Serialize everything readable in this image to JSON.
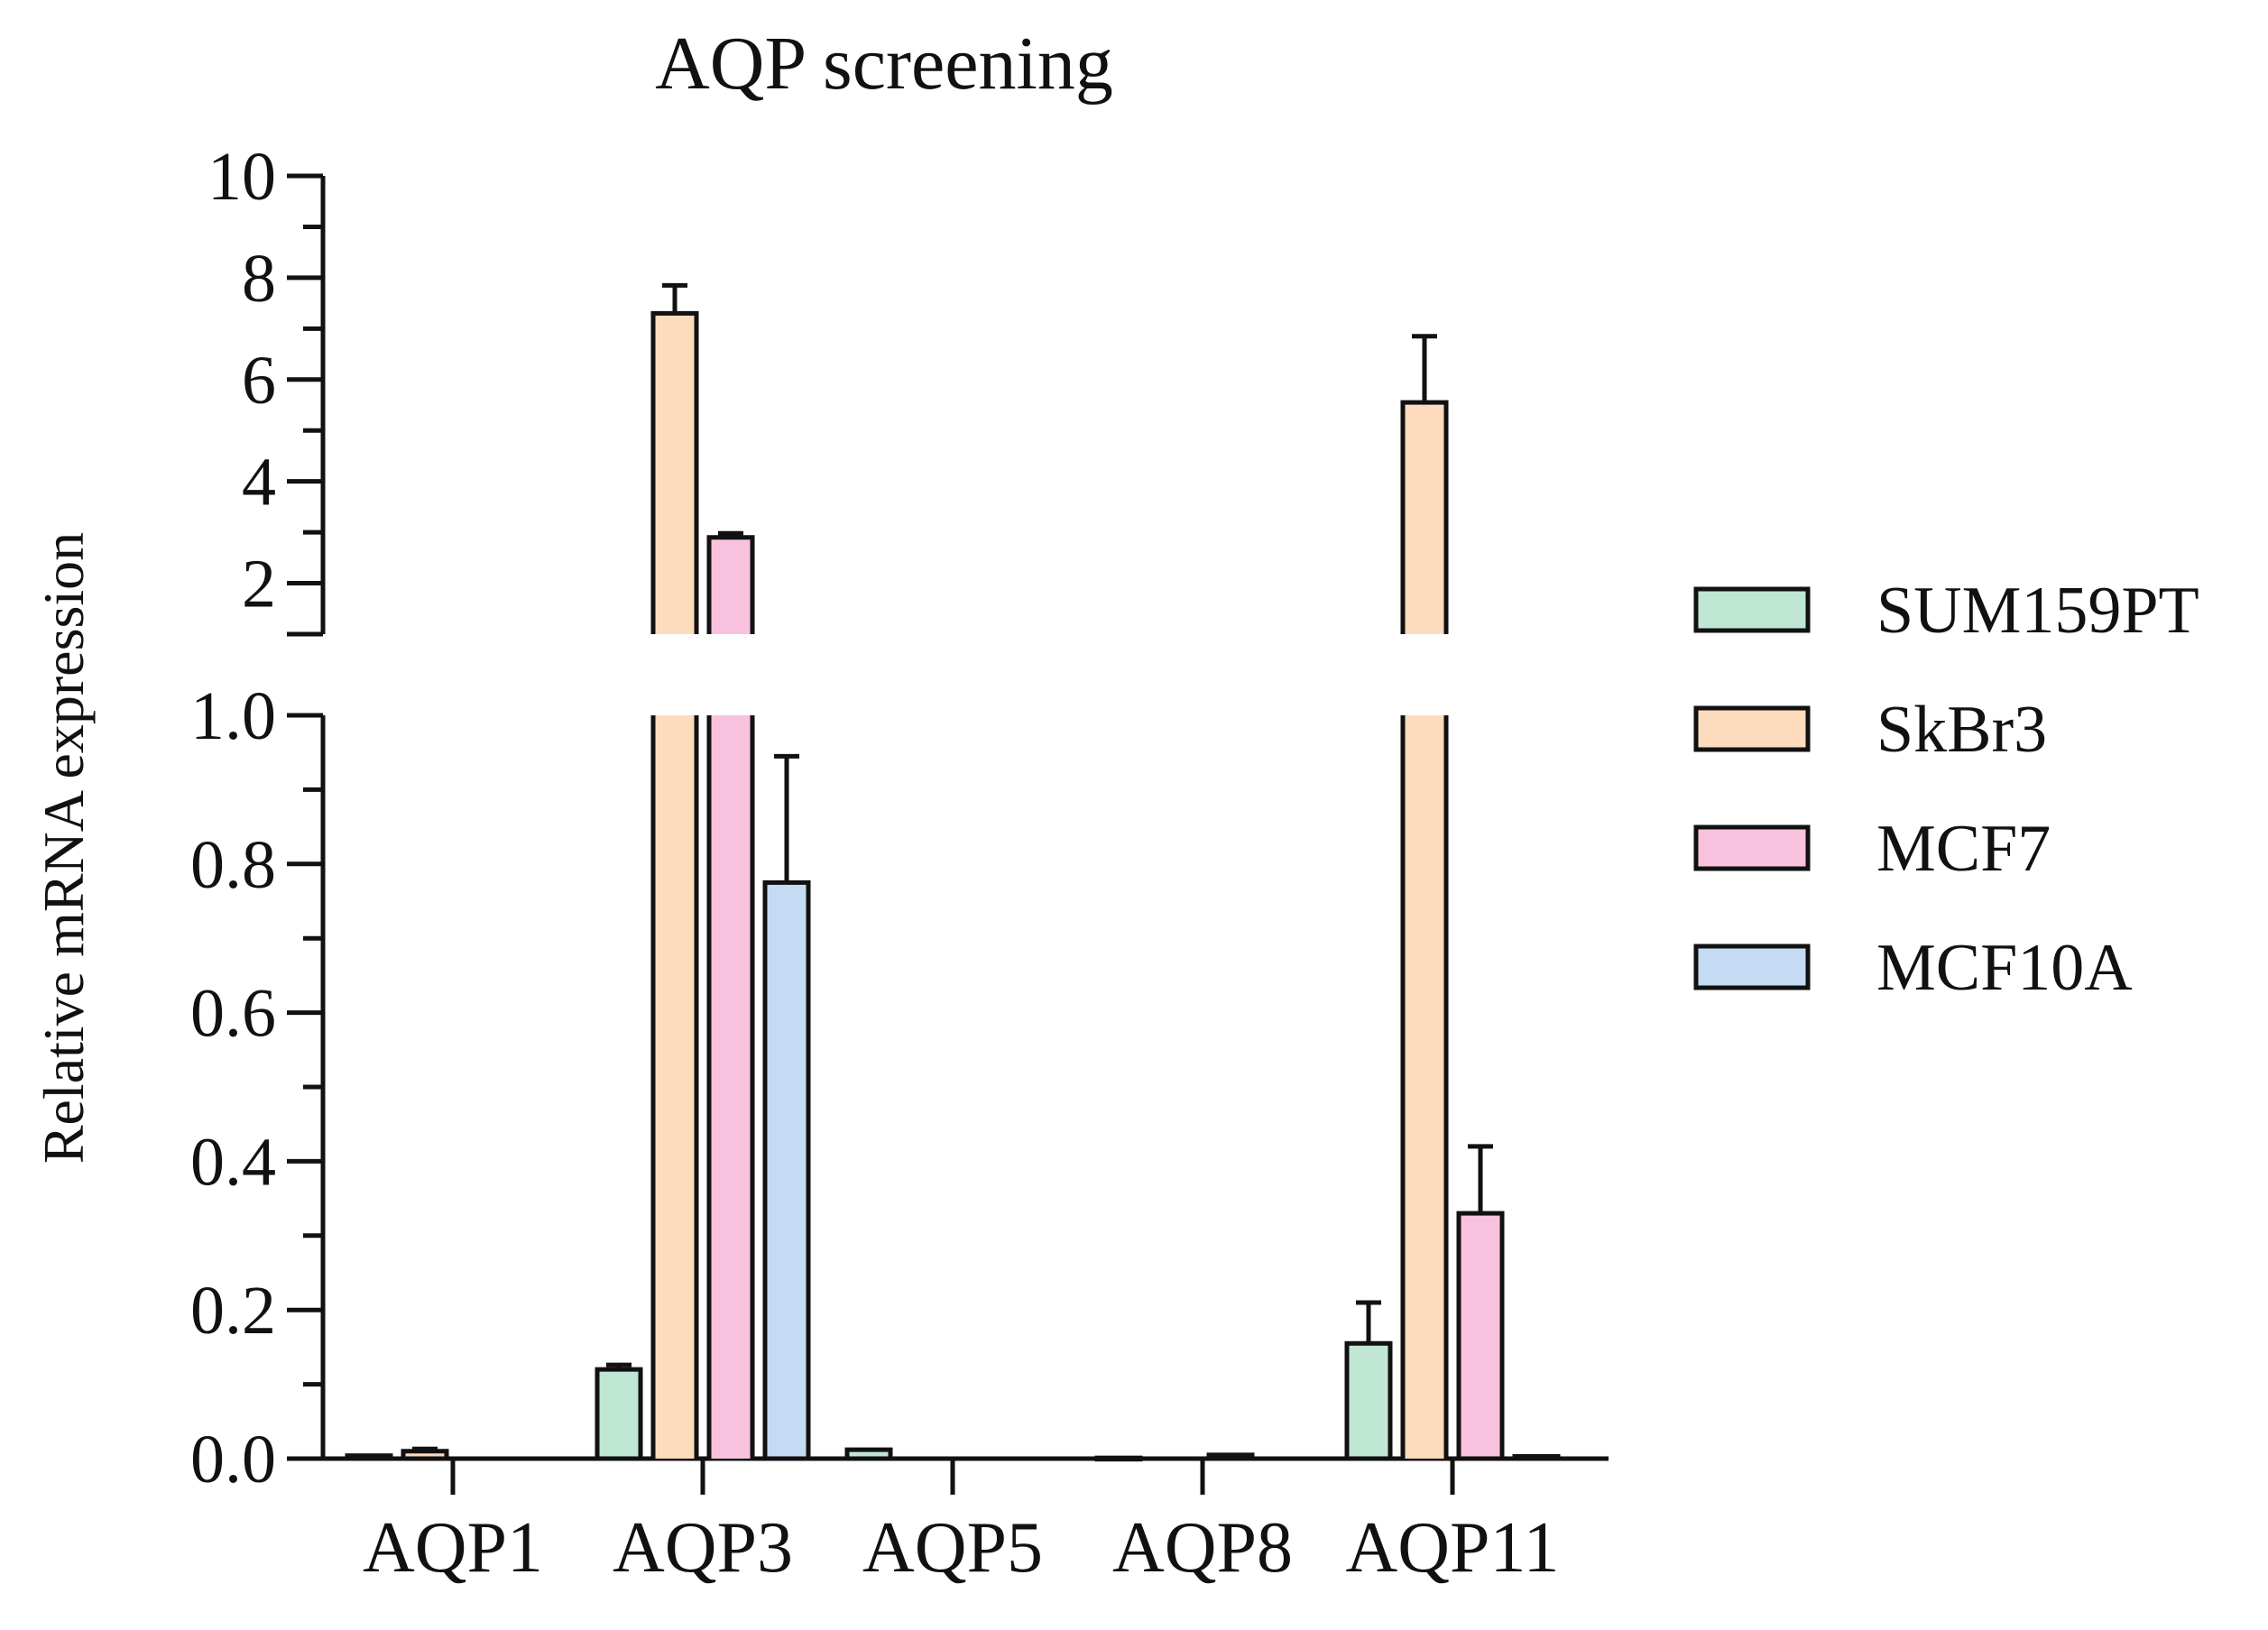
{
  "chart_data": {
    "type": "bar",
    "title": "AQP screening",
    "xlabel": "",
    "ylabel": "Relative mRNA expression",
    "categories": [
      "AQP1",
      "AQP3",
      "AQP5",
      "AQP8",
      "AQP11"
    ],
    "axis_break": true,
    "upper_segment": {
      "ylim": [
        1.0,
        10
      ],
      "ticks": [
        2,
        4,
        6,
        8,
        10
      ],
      "tick_labels": [
        "2",
        "4",
        "6",
        "8",
        "10"
      ]
    },
    "lower_segment": {
      "ylim": [
        0,
        1.0
      ],
      "ticks": [
        0.0,
        0.2,
        0.4,
        0.6,
        0.8,
        1.0
      ],
      "tick_labels": [
        "0.0",
        "0.2",
        "0.4",
        "0.6",
        "0.8",
        "1.0"
      ]
    },
    "legend_position": "right",
    "series": [
      {
        "name": "SUM159PT",
        "color": "#bfe7d3",
        "values": [
          0.004,
          0.12,
          0.012,
          0.001,
          0.155
        ],
        "errors": [
          0.002,
          0.006,
          0.002,
          0.0005,
          0.055
        ]
      },
      {
        "name": "SkBr3",
        "color": "#fddcbd",
        "values": [
          0.01,
          7.3,
          0.0,
          0.0,
          5.55
        ],
        "errors": [
          0.003,
          0.55,
          0.0,
          0.0,
          1.3
        ]
      },
      {
        "name": "MCF7",
        "color": "#f8c2df",
        "values": [
          0.0,
          2.9,
          0.0,
          0.005,
          0.33
        ],
        "errors": [
          0.0,
          0.08,
          0.0,
          0.002,
          0.09
        ]
      },
      {
        "name": "MCF10A",
        "color": "#c5dbf4",
        "values": [
          0.0,
          0.775,
          0.0,
          0.0,
          0.003
        ],
        "errors": [
          0.0,
          0.17,
          0.0,
          0.0,
          0.001
        ]
      }
    ]
  }
}
